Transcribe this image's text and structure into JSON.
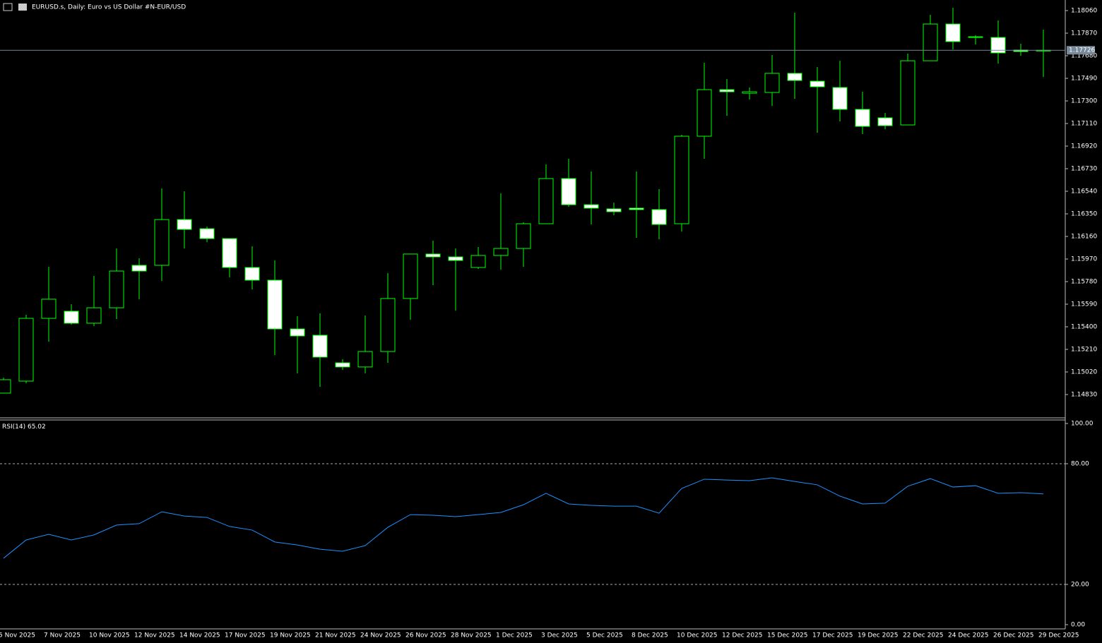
{
  "chart_data": [
    {
      "type": "candlestick",
      "title": "EURUSD.s, Daily:  Euro vs US Dollar #N-EUR/USD",
      "categories": [
        "5 Nov 2025",
        null,
        "7 Nov 2025",
        null,
        "10 Nov 2025",
        null,
        "12 Nov 2025",
        null,
        "14 Nov 2025",
        null,
        "17 Nov 2025",
        null,
        "19 Nov 2025",
        null,
        "21 Nov 2025",
        null,
        "24 Nov 2025",
        null,
        "26 Nov 2025",
        null,
        "28 Nov 2025",
        null,
        "1 Dec 2025",
        null,
        "3 Dec 2025",
        null,
        "5 Dec 2025",
        null,
        "8 Dec 2025",
        null,
        "10 Dec 2025",
        null,
        "12 Dec 2025",
        null,
        "15 Dec 2025",
        null,
        "17 Dec 2025",
        null,
        "19 Dec 2025",
        null,
        "22 Dec 2025",
        null,
        "24 Dec 2025",
        null,
        "26 Dec 2025",
        null,
        "29 Dec 2025"
      ],
      "open": [
        1.14842,
        1.14943,
        1.15471,
        1.15531,
        1.1543,
        1.1556,
        1.15917,
        1.15917,
        1.16302,
        1.16225,
        1.16142,
        1.15899,
        1.15792,
        1.15382,
        1.15329,
        1.15097,
        1.15062,
        1.15192,
        1.15638,
        1.16012,
        1.15988,
        1.15899,
        1.16,
        1.16059,
        1.16267,
        1.16647,
        1.16427,
        1.16392,
        1.16398,
        1.16386,
        1.16267,
        1.17003,
        1.17395,
        1.17365,
        1.17371,
        1.17532,
        1.17466,
        1.17413,
        1.17229,
        1.17158,
        1.17098,
        1.17638,
        1.17947,
        1.1784,
        1.17834,
        1.17728,
        1.17722
      ],
      "high": [
        1.14972,
        1.15501,
        1.15905,
        1.1559,
        1.15828,
        1.16059,
        1.15976,
        1.16564,
        1.1654,
        1.16243,
        1.16142,
        1.16077,
        1.15958,
        1.15489,
        1.15513,
        1.15127,
        1.15495,
        1.15851,
        1.16012,
        1.16124,
        1.16059,
        1.16071,
        1.16522,
        1.16279,
        1.16766,
        1.16813,
        1.16706,
        1.16445,
        1.16706,
        1.16558,
        1.17015,
        1.17621,
        1.17484,
        1.17413,
        1.17686,
        1.18042,
        1.17585,
        1.17638,
        1.17377,
        1.17199,
        1.17698,
        1.18024,
        1.18084,
        1.17852,
        1.17977,
        1.17781,
        1.179
      ],
      "low": [
        1.14842,
        1.14925,
        1.15275,
        1.15418,
        1.15406,
        1.15465,
        1.15632,
        1.15786,
        1.16059,
        1.16112,
        1.15816,
        1.15715,
        1.15162,
        1.15008,
        1.14895,
        1.15038,
        1.15008,
        1.15097,
        1.15459,
        1.1575,
        1.15537,
        1.15887,
        1.15881,
        1.15905,
        1.16267,
        1.16409,
        1.16261,
        1.16338,
        1.16148,
        1.16136,
        1.16202,
        1.16813,
        1.17175,
        1.17312,
        1.17258,
        1.17318,
        1.17033,
        1.17128,
        1.17021,
        1.17062,
        1.17098,
        1.17638,
        1.17733,
        1.17775,
        1.17615,
        1.1768,
        1.17502
      ],
      "close": [
        1.14955,
        1.15471,
        1.15632,
        1.1543,
        1.1556,
        1.15869,
        1.15869,
        1.16302,
        1.16219,
        1.16142,
        1.15899,
        1.15792,
        1.15382,
        1.15323,
        1.15145,
        1.15062,
        1.15192,
        1.15638,
        1.16012,
        1.15988,
        1.15958,
        1.16,
        1.16059,
        1.16267,
        1.16647,
        1.16427,
        1.16398,
        1.16368,
        1.16386,
        1.16261,
        1.17003,
        1.17395,
        1.17377,
        1.17377,
        1.17532,
        1.17472,
        1.17419,
        1.17229,
        1.17086,
        1.17092,
        1.17638,
        1.17947,
        1.17799,
        1.17834,
        1.17704,
        1.17716,
        1.17726
      ],
      "up_color": "#000000",
      "down_color": "#ffffff",
      "wick_color": "#00ff00",
      "price_line_color": "#778899",
      "ylim": [
        1.1464,
        1.18149
      ],
      "yticks": [
        {
          "value": 1.1806,
          "label": "1.18060"
        },
        {
          "value": 1.1787,
          "label": "1.17870"
        },
        {
          "value": 1.1768,
          "label": "1.17680"
        },
        {
          "value": 1.1749,
          "label": "1.17490"
        },
        {
          "value": 1.173,
          "label": "1.17300"
        },
        {
          "value": 1.1711,
          "label": "1.17110"
        },
        {
          "value": 1.1692,
          "label": "1.16920"
        },
        {
          "value": 1.1673,
          "label": "1.16730"
        },
        {
          "value": 1.1654,
          "label": "1.16540"
        },
        {
          "value": 1.1635,
          "label": "1.16350"
        },
        {
          "value": 1.1616,
          "label": "1.16160"
        },
        {
          "value": 1.1597,
          "label": "1.15970"
        },
        {
          "value": 1.1578,
          "label": "1.15780"
        },
        {
          "value": 1.1559,
          "label": "1.15590"
        },
        {
          "value": 1.154,
          "label": "1.15400"
        },
        {
          "value": 1.1521,
          "label": "1.15210"
        },
        {
          "value": 1.1502,
          "label": "1.15020"
        },
        {
          "value": 1.1483,
          "label": "1.14830"
        }
      ],
      "grid": false
    },
    {
      "type": "line",
      "series": [
        {
          "name": "RSI(14)",
          "color": "#1e90ff",
          "values": [
            33.0,
            42.1,
            44.9,
            42.1,
            44.6,
            49.5,
            50.2,
            56.1,
            54.0,
            53.3,
            48.8,
            47.0,
            41.1,
            39.6,
            37.5,
            36.5,
            39.3,
            48.4,
            54.7,
            54.4,
            53.7,
            54.7,
            55.8,
            59.6,
            65.3,
            60.0,
            59.3,
            58.9,
            58.9,
            55.4,
            67.7,
            72.3,
            71.9,
            71.6,
            73.0,
            71.2,
            69.5,
            63.9,
            60.0,
            60.4,
            68.8,
            72.6,
            68.4,
            69.1,
            65.3,
            65.6,
            65.02
          ]
        }
      ],
      "ylim": [
        0,
        100
      ],
      "yticks": [
        {
          "value": 100,
          "label": "100.00"
        },
        {
          "value": 80,
          "label": "80.00"
        },
        {
          "value": 20,
          "label": "20.00"
        },
        {
          "value": 0,
          "label": "0.00"
        }
      ],
      "grid": true
    }
  ]
}
